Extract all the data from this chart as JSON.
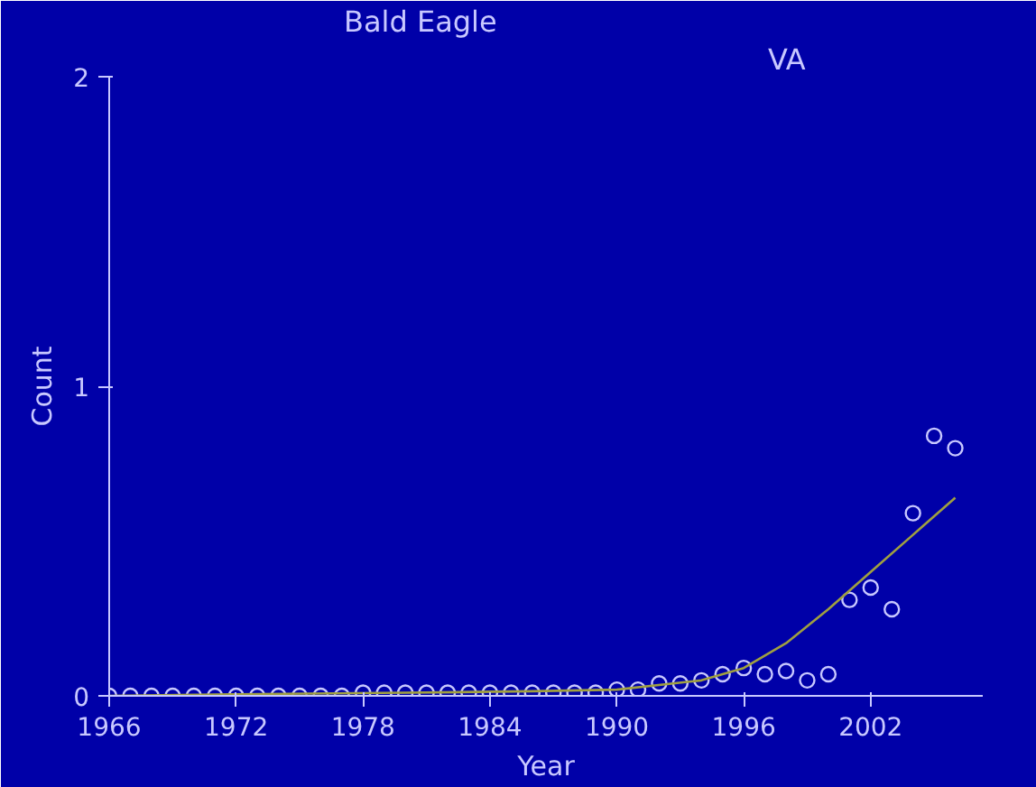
{
  "chart_data": {
    "type": "scatter",
    "title": "Bald Eagle",
    "subtitle": "VA",
    "xlabel": "Year",
    "ylabel": "Count",
    "xlim": [
      1966,
      2007.3
    ],
    "ylim": [
      0,
      2
    ],
    "xticks": [
      1966,
      1972,
      1978,
      1984,
      1990,
      1996,
      2002
    ],
    "yticks": [
      0,
      1,
      2
    ],
    "grid": false,
    "series": [
      {
        "marker": "circle",
        "color": "#c8c8ff",
        "x": [
          1966,
          1967,
          1968,
          1969,
          1970,
          1971,
          1972,
          1973,
          1974,
          1975,
          1976,
          1977,
          1978,
          1979,
          1980,
          1981,
          1982,
          1983,
          1984,
          1985,
          1986,
          1987,
          1988,
          1989,
          1990,
          1991,
          1992,
          1993,
          1994,
          1995,
          1996,
          1997,
          1998,
          1999,
          2000,
          2001,
          2002,
          2003,
          2004,
          2005,
          2006
        ],
        "values": [
          0,
          0,
          0,
          0,
          0,
          0,
          0,
          0,
          0,
          0,
          0,
          0,
          0.01,
          0.01,
          0.01,
          0.01,
          0.01,
          0.01,
          0.01,
          0.01,
          0.01,
          0.01,
          0.01,
          0.01,
          0.02,
          0.02,
          0.04,
          0.04,
          0.05,
          0.07,
          0.09,
          0.07,
          0.08,
          0.05,
          0.07,
          0.31,
          0.35,
          0.28,
          0.59,
          0.84,
          0.8
        ]
      },
      {
        "type": "line",
        "color": "#a0a040",
        "x": [
          1966,
          1972,
          1980,
          1986,
          1990,
          1994,
          1996,
          1998,
          2000,
          2002,
          2004,
          2006
        ],
        "values": [
          0,
          0.005,
          0.01,
          0.015,
          0.02,
          0.05,
          0.09,
          0.17,
          0.28,
          0.4,
          0.52,
          0.64
        ]
      }
    ]
  }
}
